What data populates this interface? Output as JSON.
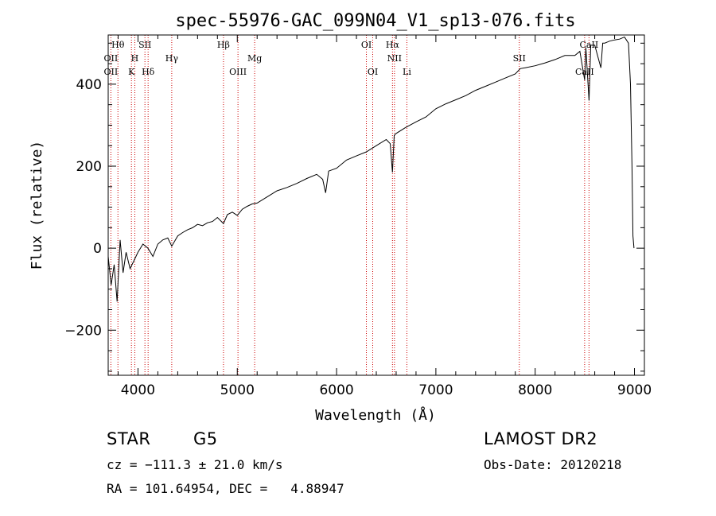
{
  "chart_data": {
    "type": "line",
    "title": "spec-55976-GAC_099N04_V1_sp13-076.fits",
    "xlabel": "Wavelength (Å)",
    "ylabel": "Flux (relative)",
    "xlim": [
      3700,
      9100
    ],
    "ylim": [
      -310,
      520
    ],
    "x_ticks": [
      4000,
      5000,
      6000,
      7000,
      8000,
      9000
    ],
    "y_ticks": [
      -200,
      0,
      200,
      400
    ],
    "grid": false,
    "line_color": "#000000",
    "marker_color": "#cc0000",
    "spectrum": {
      "x": [
        3700,
        3730,
        3760,
        3790,
        3820,
        3850,
        3880,
        3920,
        3960,
        4000,
        4050,
        4100,
        4150,
        4200,
        4250,
        4300,
        4340,
        4400,
        4450,
        4500,
        4550,
        4600,
        4650,
        4700,
        4750,
        4800,
        4861,
        4900,
        4950,
        5000,
        5050,
        5100,
        5150,
        5200,
        5300,
        5400,
        5500,
        5600,
        5700,
        5800,
        5860,
        5890,
        5920,
        6000,
        6100,
        6200,
        6300,
        6400,
        6500,
        6540,
        6563,
        6580,
        6600,
        6700,
        6800,
        6900,
        7000,
        7100,
        7200,
        7300,
        7400,
        7500,
        7600,
        7700,
        7800,
        7850,
        7900,
        8000,
        8100,
        8200,
        8300,
        8400,
        8450,
        8498,
        8510,
        8542,
        8560,
        8600,
        8662,
        8680,
        8700,
        8750,
        8800,
        8850,
        8900,
        8940,
        8960,
        8975,
        8985,
        8995
      ],
      "y": [
        -20,
        -90,
        -40,
        -130,
        20,
        -60,
        -10,
        -50,
        -30,
        -10,
        10,
        0,
        -20,
        10,
        20,
        25,
        5,
        30,
        38,
        45,
        50,
        58,
        55,
        62,
        65,
        75,
        60,
        82,
        88,
        80,
        95,
        102,
        108,
        110,
        125,
        140,
        148,
        158,
        170,
        180,
        168,
        135,
        188,
        195,
        215,
        225,
        235,
        250,
        265,
        255,
        185,
        275,
        280,
        295,
        308,
        320,
        340,
        352,
        362,
        372,
        385,
        395,
        405,
        415,
        425,
        438,
        440,
        445,
        452,
        460,
        470,
        470,
        480,
        410,
        490,
        360,
        495,
        495,
        440,
        500,
        500,
        505,
        508,
        510,
        515,
        500,
        400,
        200,
        30,
        0
      ]
    },
    "spectral_lines": [
      {
        "label": "Hθ",
        "x": 3798,
        "row": 0
      },
      {
        "label": "OII",
        "x": 3727,
        "row": 1
      },
      {
        "label": "OII",
        "x": 3727,
        "row": 2
      },
      {
        "label": "H",
        "x": 3968,
        "row": 1
      },
      {
        "label": "K",
        "x": 3934,
        "row": 2
      },
      {
        "label": "SII",
        "x": 4070,
        "row": 0
      },
      {
        "label": "Hδ",
        "x": 4102,
        "row": 2
      },
      {
        "label": "Hγ",
        "x": 4340,
        "row": 1
      },
      {
        "label": "Hβ",
        "x": 4861,
        "row": 0
      },
      {
        "label": "Mg",
        "x": 5175,
        "row": 1
      },
      {
        "label": "OIII",
        "x": 5007,
        "row": 2
      },
      {
        "label": "OI",
        "x": 6300,
        "row": 0
      },
      {
        "label": "OI",
        "x": 6364,
        "row": 2
      },
      {
        "label": "Hα",
        "x": 6563,
        "row": 0
      },
      {
        "label": "NII",
        "x": 6583,
        "row": 1
      },
      {
        "label": "Li",
        "x": 6708,
        "row": 2
      },
      {
        "label": "SII",
        "x": 7840,
        "row": 1
      },
      {
        "label": "CaII",
        "x": 8542,
        "row": 0
      },
      {
        "label": "CaII",
        "x": 8498,
        "row": 2
      }
    ]
  },
  "info": {
    "object_class": "STAR",
    "subclass": "G5",
    "survey": "LAMOST DR2",
    "cz": "cz = −111.3 ± 21.0 km/s",
    "obs_date": "Obs-Date: 20120218",
    "coords": "RA = 101.64954, DEC =   4.88947"
  }
}
